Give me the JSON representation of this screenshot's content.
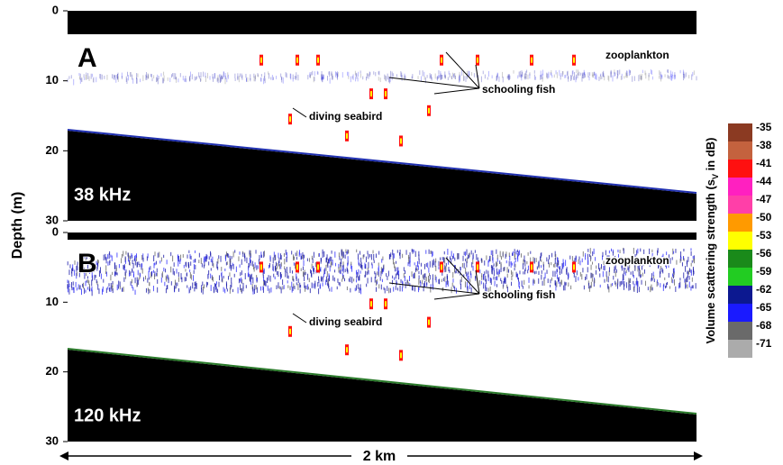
{
  "y_axis_label": "Depth (m)",
  "panels": [
    {
      "letter": "A",
      "frequency": "38 kHz",
      "depth_ticks": [
        "0",
        "10",
        "20",
        "30"
      ],
      "annotations": {
        "zooplankton": "zooplankton",
        "schooling_fish": "schooling fish",
        "diving_seabird": "diving seabird"
      }
    },
    {
      "letter": "B",
      "frequency": "120 kHz",
      "depth_ticks": [
        "0",
        "10",
        "20",
        "30"
      ],
      "annotations": {
        "zooplankton": "zooplankton",
        "schooling_fish": "schooling fish",
        "diving_seabird": "diving seabird"
      }
    }
  ],
  "colorbar": {
    "title": "Volume scattering strength (s",
    "subscript": "V",
    "title_end": " in dB)",
    "levels": [
      {
        "label": "-35",
        "color": "#8b3a22"
      },
      {
        "label": "-38",
        "color": "#c4623e"
      },
      {
        "label": "-41",
        "color": "#ff1010"
      },
      {
        "label": "-44",
        "color": "#ff20c0"
      },
      {
        "label": "-47",
        "color": "#ff3fa8"
      },
      {
        "label": "-50",
        "color": "#ff9a00"
      },
      {
        "label": "-53",
        "color": "#ffff00"
      },
      {
        "label": "-56",
        "color": "#1a8a1a"
      },
      {
        "label": "-59",
        "color": "#22cc22"
      },
      {
        "label": "-62",
        "color": "#0c1890"
      },
      {
        "label": "-65",
        "color": "#1a1aff"
      },
      {
        "label": "-68",
        "color": "#6a6a6a"
      },
      {
        "label": "-71",
        "color": "#ababab"
      }
    ]
  },
  "scale_bar": "2 km"
}
